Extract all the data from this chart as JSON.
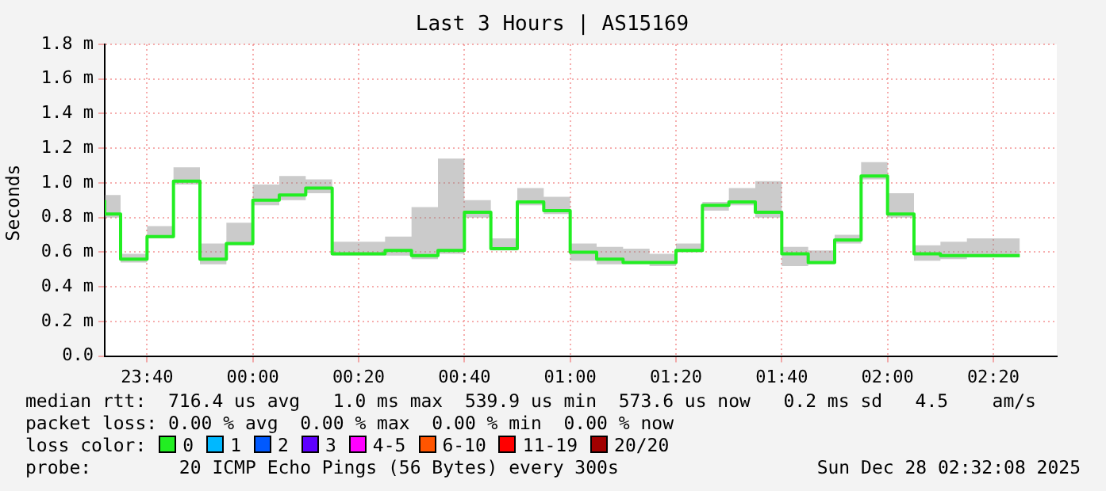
{
  "chart_data": {
    "type": "step",
    "title": "Last 3 Hours | AS15169",
    "ylabel": "Seconds",
    "x": [
      "2025-12-27T23:32",
      "2025-12-27T23:35",
      "2025-12-27T23:40",
      "2025-12-27T23:45",
      "2025-12-27T23:50",
      "2025-12-27T23:55",
      "2025-12-28T00:00",
      "2025-12-28T00:05",
      "2025-12-28T00:10",
      "2025-12-28T00:15",
      "2025-12-28T00:20",
      "2025-12-28T00:25",
      "2025-12-28T00:30",
      "2025-12-28T00:35",
      "2025-12-28T00:40",
      "2025-12-28T00:45",
      "2025-12-28T00:50",
      "2025-12-28T00:55",
      "2025-12-28T01:00",
      "2025-12-28T01:05",
      "2025-12-28T01:10",
      "2025-12-28T01:15",
      "2025-12-28T01:20",
      "2025-12-28T01:25",
      "2025-12-28T01:30",
      "2025-12-28T01:35",
      "2025-12-28T01:40",
      "2025-12-28T01:45",
      "2025-12-28T01:50",
      "2025-12-28T01:55",
      "2025-12-28T02:00",
      "2025-12-28T02:05",
      "2025-12-28T02:10",
      "2025-12-28T02:15",
      "2025-12-28T02:20",
      "2025-12-28T02:25"
    ],
    "series": [
      {
        "name": "0",
        "color": "#22ee22",
        "values": [
          0.9,
          0.82,
          0.56,
          0.69,
          1.01,
          0.56,
          0.65,
          0.9,
          0.93,
          0.97,
          0.59,
          0.59,
          0.61,
          0.58,
          0.61,
          0.83,
          0.62,
          0.89,
          0.84,
          0.6,
          0.56,
          0.54,
          0.54,
          0.61,
          0.87,
          0.89,
          0.83,
          0.59,
          0.54,
          0.67,
          1.04,
          0.82,
          0.59,
          0.58,
          0.58,
          0.58
        ],
        "upper": [
          0.98,
          0.93,
          0.59,
          0.75,
          1.09,
          0.65,
          0.77,
          0.99,
          1.04,
          1.02,
          0.66,
          0.66,
          0.69,
          0.86,
          1.14,
          0.9,
          0.68,
          0.97,
          0.92,
          0.65,
          0.63,
          0.62,
          0.59,
          0.65,
          0.89,
          0.97,
          1.01,
          0.63,
          0.61,
          0.7,
          1.12,
          0.94,
          0.64,
          0.66,
          0.68,
          0.68
        ],
        "lower": [
          0.87,
          0.8,
          0.54,
          0.68,
          0.99,
          0.53,
          0.64,
          0.87,
          0.9,
          0.94,
          0.58,
          0.58,
          0.58,
          0.56,
          0.59,
          0.8,
          0.61,
          0.87,
          0.82,
          0.55,
          0.53,
          0.53,
          0.52,
          0.6,
          0.84,
          0.87,
          0.8,
          0.52,
          0.53,
          0.65,
          1.02,
          0.8,
          0.55,
          0.56,
          0.57,
          0.57
        ]
      },
      {
        "name": "1",
        "color": "#00b8ff",
        "values": [
          null,
          null,
          null,
          null,
          null,
          null,
          null,
          null,
          null,
          null,
          null,
          null,
          null,
          null,
          null,
          null,
          null,
          null,
          null,
          null,
          null,
          null,
          null,
          null,
          null,
          null,
          null,
          null,
          null,
          null,
          null,
          null,
          null,
          null,
          null,
          null
        ]
      },
      {
        "name": "2",
        "color": "#0059ff",
        "values": [
          null,
          null,
          null,
          null,
          null,
          null,
          null,
          null,
          null,
          null,
          null,
          null,
          null,
          null,
          null,
          null,
          null,
          null,
          null,
          null,
          null,
          null,
          null,
          null,
          null,
          null,
          null,
          null,
          null,
          null,
          null,
          null,
          null,
          null,
          null,
          null
        ]
      },
      {
        "name": "3",
        "color": "#5e00ff",
        "values": [
          null,
          null,
          null,
          null,
          null,
          null,
          null,
          null,
          null,
          null,
          null,
          null,
          null,
          null,
          null,
          null,
          null,
          null,
          null,
          null,
          null,
          null,
          null,
          null,
          null,
          null,
          null,
          null,
          null,
          null,
          null,
          null,
          null,
          null,
          null,
          null
        ]
      },
      {
        "name": "4-5",
        "color": "#ff00ff",
        "values": [
          null,
          null,
          null,
          null,
          null,
          null,
          null,
          null,
          null,
          null,
          null,
          null,
          null,
          null,
          null,
          null,
          null,
          null,
          null,
          null,
          null,
          null,
          null,
          null,
          null,
          null,
          null,
          null,
          null,
          null,
          null,
          null,
          null,
          null,
          null,
          null
        ]
      },
      {
        "name": "6-10",
        "color": "#ff5500",
        "values": [
          null,
          null,
          null,
          null,
          null,
          null,
          null,
          null,
          null,
          null,
          null,
          null,
          null,
          null,
          null,
          null,
          null,
          null,
          null,
          null,
          null,
          null,
          null,
          null,
          null,
          null,
          null,
          null,
          null,
          null,
          null,
          null,
          null,
          null,
          null,
          null
        ]
      },
      {
        "name": "11-19",
        "color": "#ff0000",
        "values": [
          null,
          null,
          null,
          null,
          null,
          null,
          null,
          null,
          null,
          null,
          null,
          null,
          null,
          null,
          null,
          null,
          null,
          null,
          null,
          null,
          null,
          null,
          null,
          null,
          null,
          null,
          null,
          null,
          null,
          null,
          null,
          null,
          null,
          null,
          null,
          null
        ]
      },
      {
        "name": "20/20",
        "color": "#a10000",
        "values": [
          null,
          null,
          null,
          null,
          null,
          null,
          null,
          null,
          null,
          null,
          null,
          null,
          null,
          null,
          null,
          null,
          null,
          null,
          null,
          null,
          null,
          null,
          null,
          null,
          null,
          null,
          null,
          null,
          null,
          null,
          null,
          null,
          null,
          null,
          null,
          null
        ]
      }
    ],
    "legend": "bottom",
    "legend_title": "loss color:",
    "xlim": [
      "2025-12-27T23:32",
      "2025-12-28T02:32"
    ],
    "xticks": [
      {
        "value": "2025-12-27T23:40",
        "label": "23:40"
      },
      {
        "value": "2025-12-28T00:00",
        "label": "00:00"
      },
      {
        "value": "2025-12-28T00:20",
        "label": "00:20"
      },
      {
        "value": "2025-12-28T00:40",
        "label": "00:40"
      },
      {
        "value": "2025-12-28T01:00",
        "label": "01:00"
      },
      {
        "value": "2025-12-28T01:20",
        "label": "01:20"
      },
      {
        "value": "2025-12-28T01:40",
        "label": "01:40"
      },
      {
        "value": "2025-12-28T02:00",
        "label": "02:00"
      },
      {
        "value": "2025-12-28T02:20",
        "label": "02:20"
      }
    ],
    "ylim": [
      0,
      1.8
    ],
    "yticks": [
      {
        "value": 0,
        "label": "0.0"
      },
      {
        "value": 0.2,
        "label": "0.2 m"
      },
      {
        "value": 0.4,
        "label": "0.4 m"
      },
      {
        "value": 0.6,
        "label": "0.6 m"
      },
      {
        "value": 0.8,
        "label": "0.8 m"
      },
      {
        "value": 1.0,
        "label": "1.0 m"
      },
      {
        "value": 1.2,
        "label": "1.2 m"
      },
      {
        "value": 1.4,
        "label": "1.4 m"
      },
      {
        "value": 1.6,
        "label": "1.6 m"
      },
      {
        "value": 1.8,
        "label": "1.8 m"
      }
    ],
    "grid": true,
    "annotations": [
      "median rtt:  716.4 us avg   1.0 ms max  539.9 us min  573.6 us now   0.2 ms sd   4.5    am/s",
      "packet loss: 0.00 % avg  0.00 % max  0.00 % min  0.00 % now",
      "probe:        20 ICMP Echo Pings (56 Bytes) every 300s",
      "Sun Dec 28 02:32:08 2025"
    ]
  }
}
